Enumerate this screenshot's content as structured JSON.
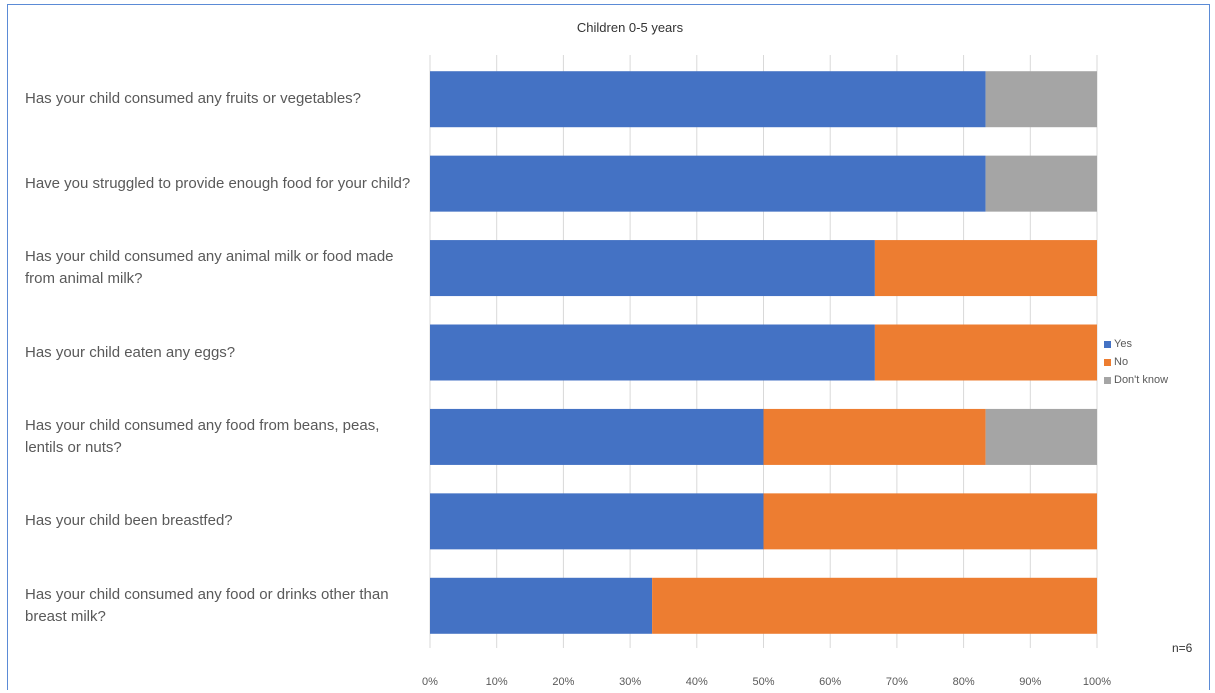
{
  "chart_data": {
    "type": "bar",
    "orientation": "horizontal",
    "stacked": "percent",
    "title": "Children 0-5 years",
    "categories": [
      "Has your child consumed any fruits or vegetables?",
      "Have you struggled to provide enough food for your child?",
      "Has your child consumed any animal milk or food made from animal milk?",
      "Has your child eaten any eggs?",
      "Has your child consumed any food from beans, peas, lentils or nuts?",
      "Has your child been breastfed?",
      "Has your child consumed any food or drinks other than breast milk?"
    ],
    "series": [
      {
        "name": "Yes",
        "color": "#4472c4",
        "values": [
          83.3,
          83.3,
          66.7,
          66.7,
          50,
          50,
          33.3
        ]
      },
      {
        "name": "No",
        "color": "#ed7d31",
        "values": [
          0,
          0,
          33.3,
          33.3,
          33.3,
          50,
          66.7
        ]
      },
      {
        "name": "Don't know",
        "color": "#a5a5a5",
        "values": [
          16.7,
          16.7,
          0,
          0,
          16.7,
          0,
          0
        ]
      }
    ],
    "xlim": [
      0,
      100
    ],
    "xticks": [
      "0%",
      "10%",
      "20%",
      "30%",
      "40%",
      "50%",
      "60%",
      "70%",
      "80%",
      "90%",
      "100%"
    ],
    "grid": true,
    "legend_position": "right",
    "annotation": "n=6"
  }
}
